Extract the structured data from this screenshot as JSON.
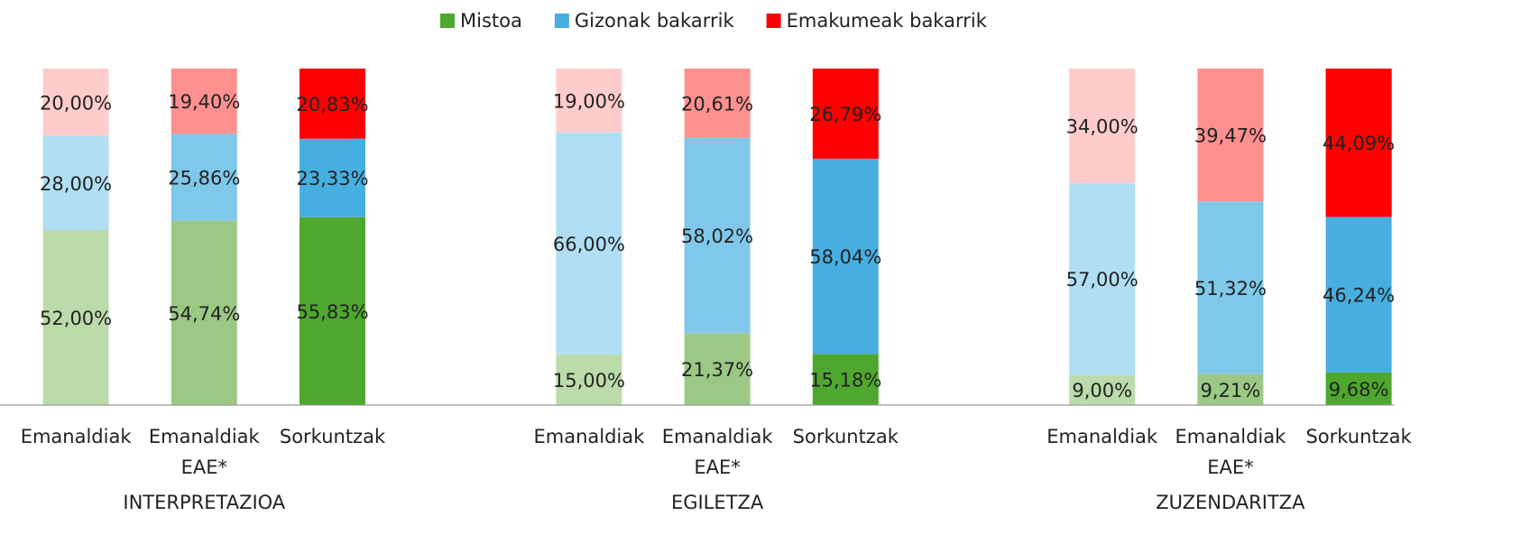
{
  "chart_data": {
    "type": "stacked_bar",
    "categories": [
      "Emanaldiak",
      "Emanaldiak EAE*",
      "Sorkuntzak",
      "Emanaldiak",
      "Emanaldiak EAE*",
      "Sorkuntzak",
      "Emanaldiak",
      "Emanaldiak EAE*",
      "Sorkuntzak"
    ],
    "groups": [
      "INTERPRETAZIOA",
      "EGILETZA",
      "ZUZENDARITZA"
    ],
    "series": [
      {
        "name": "Mistoa",
        "color": "#4ea72e",
        "colors": [
          "#bcdbaa",
          "#9bc985",
          "#4ea72e",
          "#bcdbaa",
          "#9bc985",
          "#4ea72e",
          "#bcdbaa",
          "#9bc985",
          "#4ea72e"
        ],
        "values": [
          52,
          54.74,
          55.83,
          15,
          21.37,
          15.18,
          9,
          9.21,
          9.68
        ],
        "value_labels": [
          "52,00%",
          "54,74%",
          "55,83%",
          "15,00%",
          "21,37%",
          "15,18%",
          "9,00%",
          "9,21%",
          "9,68%"
        ]
      },
      {
        "name": "Gizonak bakarrik",
        "color": "#47aee0",
        "colors": [
          "#b0dff3",
          "#7fc8ea",
          "#47aee0",
          "#b0dff3",
          "#7fc8ea",
          "#47aee0",
          "#b0dff3",
          "#7fc8ea",
          "#47aee0"
        ],
        "values": [
          28,
          25.86,
          23.33,
          66,
          58.02,
          58.04,
          57,
          51.32,
          46.24
        ],
        "value_labels": [
          "28,00%",
          "25,86%",
          "23,33%",
          "66,00%",
          "58,02%",
          "58,04%",
          "57,00%",
          "51,32%",
          "46,24%"
        ]
      },
      {
        "name": "Emakumeak bakarrik",
        "color": "#ff0000",
        "colors": [
          "#ffcccc",
          "#ff9090",
          "#ff0000",
          "#ffcccc",
          "#ff9090",
          "#ff0000",
          "#ffcccc",
          "#ff9090",
          "#ff0000"
        ],
        "values": [
          20,
          19.4,
          20.83,
          19,
          20.61,
          26.79,
          34,
          39.47,
          44.09
        ],
        "value_labels": [
          "20,00%",
          "19,40%",
          "20,83%",
          "19,00%",
          "20,61%",
          "26,79%",
          "34,00%",
          "39,47%",
          "44,09%"
        ]
      }
    ],
    "legend": "top"
  }
}
